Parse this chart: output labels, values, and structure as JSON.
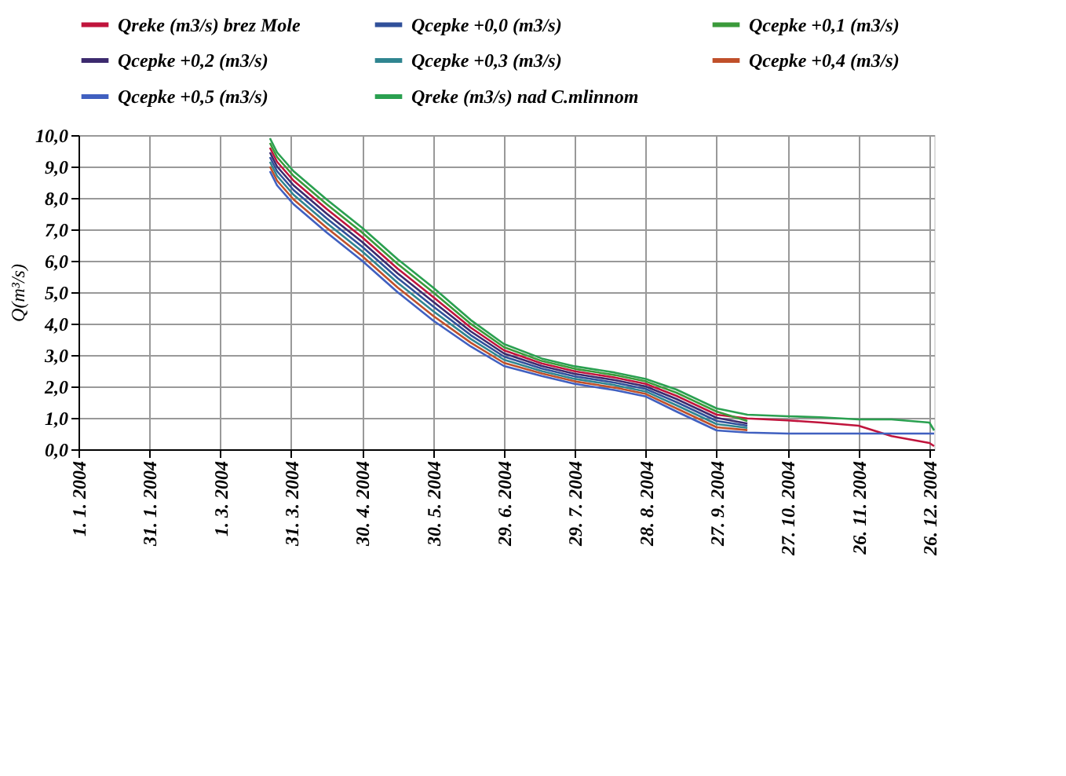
{
  "chart_data": {
    "type": "line",
    "ylabel": "Q(m³/s)",
    "ylim": [
      0,
      10
    ],
    "yticks": [
      {
        "value": 0,
        "label": "0,0"
      },
      {
        "value": 1,
        "label": "1,0"
      },
      {
        "value": 2,
        "label": "2,0"
      },
      {
        "value": 3,
        "label": "3,0"
      },
      {
        "value": 4,
        "label": "4,0"
      },
      {
        "value": 5,
        "label": "5,0"
      },
      {
        "value": 6,
        "label": "6,0"
      },
      {
        "value": 7,
        "label": "7,0"
      },
      {
        "value": 8,
        "label": "8,0"
      },
      {
        "value": 9,
        "label": "9,0"
      },
      {
        "value": 10,
        "label": "10,0"
      }
    ],
    "xlim": [
      "2004-01-01",
      "2004-12-28"
    ],
    "xticks": [
      {
        "value": "2004-01-01",
        "label": "1. 1. 2004"
      },
      {
        "value": "2004-01-31",
        "label": "31. 1. 2004"
      },
      {
        "value": "2004-03-01",
        "label": "1. 3. 2004"
      },
      {
        "value": "2004-03-31",
        "label": "31. 3. 2004"
      },
      {
        "value": "2004-04-30",
        "label": "30. 4. 2004"
      },
      {
        "value": "2004-05-30",
        "label": "30. 5. 2004"
      },
      {
        "value": "2004-06-29",
        "label": "29. 6. 2004"
      },
      {
        "value": "2004-07-29",
        "label": "29. 7. 2004"
      },
      {
        "value": "2004-08-28",
        "label": "28. 8. 2004"
      },
      {
        "value": "2004-09-27",
        "label": "27. 9. 2004"
      },
      {
        "value": "2004-10-27",
        "label": "27. 10. 2004"
      },
      {
        "value": "2004-11-26",
        "label": "26. 11. 2004"
      },
      {
        "value": "2004-12-26",
        "label": "26. 12. 2004"
      }
    ],
    "x": [
      "2004-03-22",
      "2004-03-25",
      "2004-04-01",
      "2004-04-15",
      "2004-04-30",
      "2004-05-15",
      "2004-05-30",
      "2004-06-15",
      "2004-06-29",
      "2004-07-15",
      "2004-07-29",
      "2004-08-15",
      "2004-08-28",
      "2004-09-10",
      "2004-09-27",
      "2004-10-10",
      "2004-10-27",
      "2004-11-10",
      "2004-11-26",
      "2004-12-10",
      "2004-12-26",
      "2004-12-28"
    ],
    "grid": true,
    "legend": "top",
    "line_style": "solid",
    "marker": "none",
    "series": [
      {
        "name": "Qreke (m3/s) brez Mole",
        "color": "#c0143c",
        "values": [
          9.6,
          9.15,
          8.55,
          7.65,
          6.75,
          5.75,
          4.85,
          3.87,
          3.15,
          2.73,
          2.48,
          2.28,
          2.08,
          1.7,
          1.1,
          0.98,
          0.92,
          0.85,
          0.75,
          0.42,
          0.2,
          0.1
        ]
      },
      {
        "name": "Qcepke +0,0 (m3/s)",
        "color": "#30509a",
        "values": [
          9.3,
          8.85,
          8.25,
          7.35,
          6.45,
          5.45,
          4.55,
          3.63,
          2.95,
          2.57,
          2.32,
          2.12,
          1.92,
          1.5,
          0.9,
          0.75,
          null,
          null,
          null,
          null,
          null,
          null
        ]
      },
      {
        "name": "Qcepke +0,1 (m3/s)",
        "color": "#3a9a3a",
        "values": [
          9.75,
          9.3,
          8.7,
          7.8,
          6.9,
          5.9,
          5.0,
          3.99,
          3.25,
          2.81,
          2.56,
          2.36,
          2.16,
          1.8,
          1.2,
          0.9,
          null,
          null,
          null,
          null,
          null,
          null
        ]
      },
      {
        "name": "Qcepke +0,2 (m3/s)",
        "color": "#3c2a6e",
        "values": [
          9.45,
          9.0,
          8.4,
          7.5,
          6.6,
          5.6,
          4.7,
          3.75,
          3.05,
          2.65,
          2.4,
          2.2,
          2.0,
          1.6,
          1.0,
          0.82,
          null,
          null,
          null,
          null,
          null,
          null
        ]
      },
      {
        "name": "Qcepke +0,3 (m3/s)",
        "color": "#2f8590",
        "values": [
          9.15,
          8.7,
          8.1,
          7.2,
          6.3,
          5.3,
          4.4,
          3.51,
          2.85,
          2.49,
          2.24,
          2.04,
          1.84,
          1.4,
          0.8,
          0.68,
          null,
          null,
          null,
          null,
          null,
          null
        ]
      },
      {
        "name": "Qcepke +0,4 (m3/s)",
        "color": "#c0502a",
        "values": [
          9.0,
          8.55,
          7.95,
          7.05,
          6.15,
          5.15,
          4.25,
          3.39,
          2.75,
          2.41,
          2.16,
          1.96,
          1.76,
          1.3,
          0.7,
          0.61,
          null,
          null,
          null,
          null,
          null,
          null
        ]
      },
      {
        "name": "Qcepke +0,5 (m3/s)",
        "color": "#4060c0",
        "values": [
          8.85,
          8.4,
          7.8,
          6.9,
          6.0,
          5.0,
          4.1,
          3.27,
          2.65,
          2.33,
          2.08,
          1.88,
          1.68,
          1.2,
          0.6,
          0.53,
          0.5,
          0.5,
          0.5,
          0.5,
          0.5,
          0.5
        ]
      },
      {
        "name": "Qreke (m3/s) nad C.mlinnom",
        "color": "#2aa050",
        "values": [
          9.9,
          9.45,
          8.85,
          7.95,
          7.05,
          6.05,
          5.15,
          4.11,
          3.35,
          2.89,
          2.64,
          2.44,
          2.24,
          1.9,
          1.3,
          1.1,
          1.05,
          1.02,
          0.95,
          0.95,
          0.85,
          0.6
        ]
      }
    ]
  }
}
